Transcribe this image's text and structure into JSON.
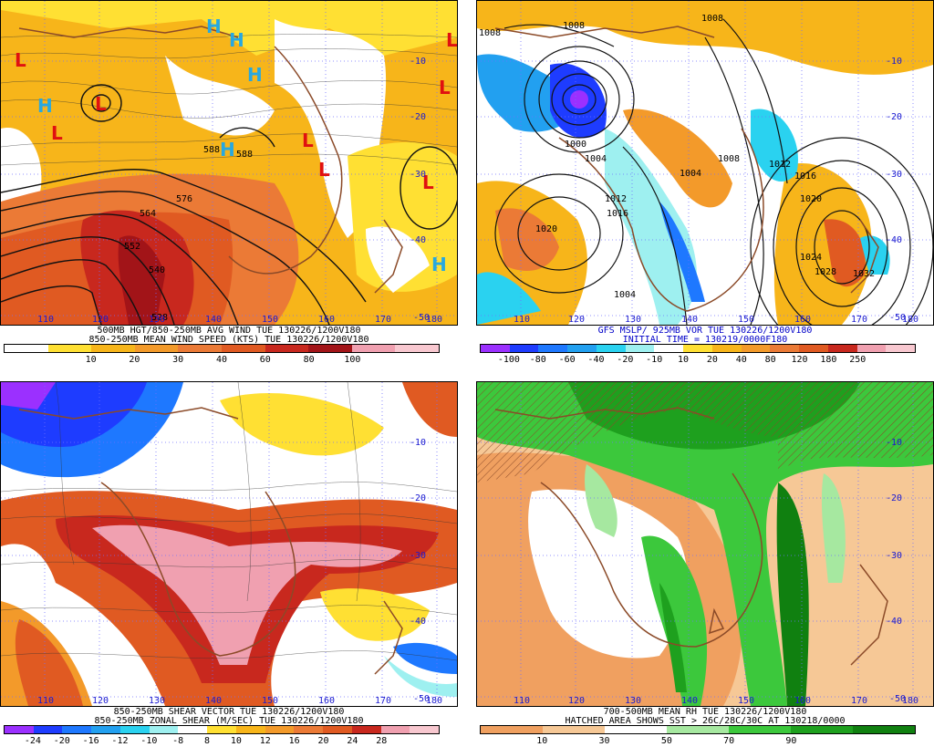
{
  "panels": [
    {
      "id": "p1",
      "caption1": "500MB HGT/850-250MB AVG WIND TUE 130226/1200V180",
      "caption2": "850-250MB MEAN WIND SPEED (KTS) TUE 130226/1200V180",
      "colorbar": {
        "colors": [
          "#ffffff",
          "#ffe033",
          "#f7b51a",
          "#f39a2a",
          "#eb7a36",
          "#e05a22",
          "#c8281e",
          "#a21418",
          "#f0a0b0",
          "#f8c8d0"
        ],
        "labels": [
          "10",
          "20",
          "30",
          "40",
          "60",
          "80",
          "100"
        ]
      },
      "map_labels": {
        "lons": [
          "110",
          "120",
          "130",
          "140",
          "150",
          "160",
          "170",
          "180"
        ],
        "lats": [
          "-10",
          "-20",
          "-30",
          "-40",
          "-50"
        ],
        "contours": [
          "564",
          "576",
          "552",
          "540",
          "528",
          "588",
          "588"
        ]
      },
      "symbols": {
        "high": "H",
        "low": "L"
      }
    },
    {
      "id": "p2",
      "caption1": "GFS MSLP/ 925MB VOR TUE 130226/1200V180",
      "caption2": "INITIAL TIME = 130219/0000F180",
      "colorbar": {
        "colors": [
          "#9b30ff",
          "#1e3cff",
          "#1e78ff",
          "#22a0f0",
          "#2ad2f0",
          "#9ef0f0",
          "#ffffff",
          "#ffe033",
          "#f7b51a",
          "#f39a2a",
          "#eb7a36",
          "#e05a22",
          "#c8281e",
          "#f0a0b0",
          "#f8c8d0"
        ],
        "labels": [
          "-100",
          "-80",
          "-60",
          "-40",
          "-20",
          "-10",
          "10",
          "20",
          "40",
          "80",
          "120",
          "180",
          "250"
        ]
      },
      "map_labels": {
        "lons": [
          "110",
          "120",
          "130",
          "140",
          "150",
          "160",
          "170",
          "180"
        ],
        "lats": [
          "-10",
          "-20",
          "-30",
          "-40",
          "-50"
        ],
        "contours": [
          "1008",
          "1008",
          "1008",
          "1004",
          "1004",
          "1008",
          "1012",
          "1016",
          "1020",
          "1012",
          "1016",
          "1020",
          "1024",
          "1028",
          "1032",
          "1004",
          "1000",
          "1000"
        ]
      }
    },
    {
      "id": "p3",
      "caption1": "850-250MB SHEAR VECTOR TUE 130226/1200V180",
      "caption2": "850-250MB ZONAL SHEAR (M/SEC) TUE 130226/1200V180",
      "colorbar": {
        "colors": [
          "#9b30ff",
          "#1e3cff",
          "#1e78ff",
          "#22a0f0",
          "#2ad2f0",
          "#9ef0f0",
          "#ffffff",
          "#ffe033",
          "#f7b51a",
          "#f39a2a",
          "#eb7a36",
          "#e05a22",
          "#c8281e",
          "#f0a0b0",
          "#f8c8d0"
        ],
        "labels": [
          "-24",
          "-20",
          "-16",
          "-12",
          "-10",
          "-8",
          "8",
          "10",
          "12",
          "16",
          "20",
          "24",
          "28"
        ]
      },
      "map_labels": {
        "lons": [
          "110",
          "120",
          "130",
          "140",
          "150",
          "160",
          "170",
          "180"
        ],
        "lats": [
          "-10",
          "-20",
          "-30",
          "-40",
          "-50"
        ]
      }
    },
    {
      "id": "p4",
      "caption1": "700-500MB MEAN RH TUE 130226/1200V180",
      "caption2": "HATCHED AREA SHOWS SST > 26C/28C/30C AT 130218/0000",
      "colorbar": {
        "colors": [
          "#f0a060",
          "#f6c896",
          "#ffffff",
          "#a6e8a0",
          "#3cc83c",
          "#1ea01e",
          "#108010"
        ],
        "labels": [
          "10",
          "30",
          "50",
          "70",
          "90"
        ]
      },
      "map_labels": {
        "lons": [
          "110",
          "120",
          "130",
          "140",
          "150",
          "160",
          "170",
          "180"
        ],
        "lats": [
          "-10",
          "-20",
          "-30",
          "-40",
          "-50"
        ]
      }
    }
  ]
}
